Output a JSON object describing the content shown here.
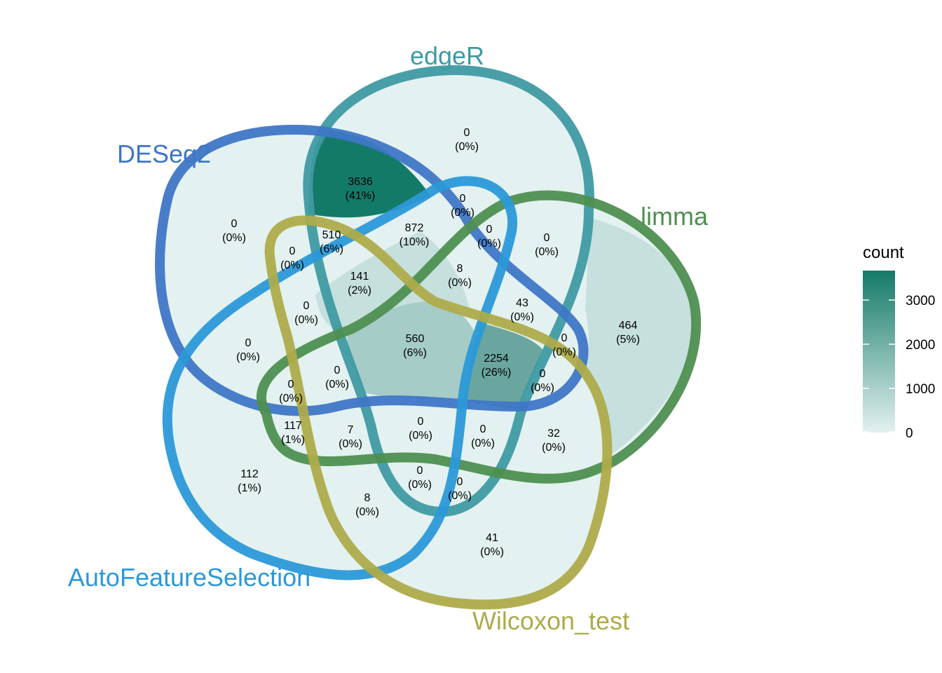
{
  "sets": [
    {
      "key": "edgeR",
      "label": "edgeR",
      "color": "#3f9aa3"
    },
    {
      "key": "DESeq2",
      "label": "DESeq2",
      "color": "#3f76c6"
    },
    {
      "key": "limma",
      "label": "limma",
      "color": "#4e8f51"
    },
    {
      "key": "autofs",
      "label": "AutoFeatureSelection",
      "color": "#2b99d8"
    },
    {
      "key": "wilcoxon",
      "label": "Wilcoxon_test",
      "color": "#aeab4a"
    }
  ],
  "regions": [
    {
      "count": "0",
      "pct": "(0%)"
    },
    {
      "count": "3636",
      "pct": "(41%)"
    },
    {
      "count": "0",
      "pct": "(0%)"
    },
    {
      "count": "0",
      "pct": "(0%)"
    },
    {
      "count": "510",
      "pct": "(6%)"
    },
    {
      "count": "872",
      "pct": "(10%)"
    },
    {
      "count": "0",
      "pct": "(0%)"
    },
    {
      "count": "0",
      "pct": "(0%)"
    },
    {
      "count": "0",
      "pct": "(0%)"
    },
    {
      "count": "141",
      "pct": "(2%)"
    },
    {
      "count": "8",
      "pct": "(0%)"
    },
    {
      "count": "43",
      "pct": "(0%)"
    },
    {
      "count": "0",
      "pct": "(0%)"
    },
    {
      "count": "464",
      "pct": "(5%)"
    },
    {
      "count": "560",
      "pct": "(6%)"
    },
    {
      "count": "0",
      "pct": "(0%)"
    },
    {
      "count": "2254",
      "pct": "(26%)"
    },
    {
      "count": "0",
      "pct": "(0%)"
    },
    {
      "count": "0",
      "pct": "(0%)"
    },
    {
      "count": "0",
      "pct": "(0%)"
    },
    {
      "count": "117",
      "pct": "(1%)"
    },
    {
      "count": "7",
      "pct": "(0%)"
    },
    {
      "count": "0",
      "pct": "(0%)"
    },
    {
      "count": "0",
      "pct": "(0%)"
    },
    {
      "count": "32",
      "pct": "(0%)"
    },
    {
      "count": "112",
      "pct": "(1%)"
    },
    {
      "count": "0",
      "pct": "(0%)"
    },
    {
      "count": "0",
      "pct": "(0%)"
    },
    {
      "count": "8",
      "pct": "(0%)"
    },
    {
      "count": "41",
      "pct": "(0%)"
    },
    {
      "count": "0",
      "pct": "(0%)"
    }
  ],
  "legend": {
    "title": "count",
    "ticks": [
      "3000",
      "2000",
      "1000",
      "0"
    ],
    "color_low": "#e3f1f0",
    "color_high": "#147a68"
  },
  "fills": {
    "peak": "#147a68",
    "high": "#6aa69f",
    "mid": "#9ec8c3",
    "low": "#c6e0dd",
    "base": "#e3f1f0"
  }
}
